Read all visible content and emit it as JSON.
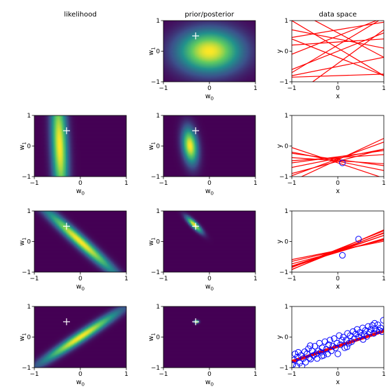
{
  "column_titles": [
    "likelihood",
    "prior/posterior",
    "data space"
  ],
  "colors": {
    "line": "#ff0000",
    "data_point": "#0000ff",
    "background_low": "#440154",
    "true_marker": "#ffffff",
    "colormap": "viridis"
  },
  "chart_data": [
    {
      "type": "heatmap",
      "panel": "prior",
      "title": "prior/posterior",
      "xlabel": "w0",
      "ylabel": "w1",
      "xlim": [
        -1,
        1
      ],
      "ylim": [
        -1,
        1
      ],
      "xticks": [
        -1,
        0,
        1
      ],
      "yticks": [
        -1,
        0,
        1
      ],
      "gaussian": {
        "mean": [
          0.0,
          0.0
        ],
        "std": [
          0.5,
          0.5
        ],
        "corr": 0.0
      },
      "marker": {
        "w0": -0.3,
        "w1": 0.5
      }
    },
    {
      "type": "line",
      "panel": "data space",
      "title": "data space",
      "xlabel": "x",
      "ylabel": "y",
      "xlim": [
        -1,
        1
      ],
      "ylim": [
        -1,
        1
      ],
      "xticks": [
        -1,
        0,
        1
      ],
      "yticks": [
        -1,
        0,
        1
      ],
      "lines": [
        {
          "w0": 0.6,
          "w1": -0.8
        },
        {
          "w0": 0.2,
          "w1": 0.9
        },
        {
          "w0": -0.5,
          "w1": 0.3
        },
        {
          "w0": 0.4,
          "w1": -0.3
        },
        {
          "w0": -0.8,
          "w1": 0.05
        },
        {
          "w0": 0.1,
          "w1": -0.9
        },
        {
          "w0": 0.0,
          "w1": 0.6
        },
        {
          "w0": 0.7,
          "w1": 0.25
        },
        {
          "w0": -0.2,
          "w1": -0.6
        },
        {
          "w0": 0.3,
          "w1": 0.1
        },
        {
          "w0": -0.4,
          "w1": 1.1
        },
        {
          "w0": 0.5,
          "w1": 0.6
        }
      ],
      "points": []
    },
    {
      "type": "heatmap",
      "panel": "likelihood",
      "title": "likelihood",
      "xlabel": "w0",
      "ylabel": "w1",
      "xlim": [
        -1,
        1
      ],
      "ylim": [
        -1,
        1
      ],
      "xticks": [
        -1,
        0,
        1
      ],
      "yticks": [
        -1,
        0,
        1
      ],
      "gaussian": {
        "mean": [
          -0.45,
          0.0
        ],
        "std": [
          0.13,
          1.4
        ],
        "corr": -0.3
      },
      "marker": {
        "w0": -0.3,
        "w1": 0.5
      }
    },
    {
      "type": "heatmap",
      "panel": "prior/posterior",
      "xlabel": "w0",
      "ylabel": "w1",
      "xlim": [
        -1,
        1
      ],
      "ylim": [
        -1,
        1
      ],
      "xticks": [
        -1,
        0,
        1
      ],
      "yticks": [
        -1,
        0,
        1
      ],
      "gaussian": {
        "mean": [
          -0.42,
          0.0
        ],
        "std": [
          0.12,
          0.42
        ],
        "corr": -0.25
      },
      "marker": {
        "w0": -0.3,
        "w1": 0.5
      }
    },
    {
      "type": "line",
      "panel": "data space",
      "xlabel": "x",
      "ylabel": "y",
      "xlim": [
        -1,
        1
      ],
      "ylim": [
        -1,
        1
      ],
      "xticks": [
        -1,
        0,
        1
      ],
      "yticks": [
        -1,
        0,
        1
      ],
      "lines": [
        {
          "w0": -0.4,
          "w1": 0.3
        },
        {
          "w0": -0.45,
          "w1": 0.7
        },
        {
          "w0": -0.5,
          "w1": -0.3
        },
        {
          "w0": -0.38,
          "w1": 0.1
        },
        {
          "w0": -0.55,
          "w1": -0.5
        },
        {
          "w0": -0.42,
          "w1": 0.55
        },
        {
          "w0": -0.48,
          "w1": -0.1
        },
        {
          "w0": -0.35,
          "w1": 0.2
        },
        {
          "w0": -0.5,
          "w1": 0.4
        },
        {
          "w0": -0.44,
          "w1": -0.2
        }
      ],
      "points": [
        {
          "x": 0.1,
          "y": -0.55
        }
      ]
    },
    {
      "type": "heatmap",
      "panel": "likelihood",
      "xlabel": "w0",
      "ylabel": "w1",
      "xlim": [
        -1,
        1
      ],
      "ylim": [
        -1,
        1
      ],
      "xticks": [
        -1,
        0,
        1
      ],
      "yticks": [
        -1,
        0,
        1
      ],
      "gaussian": {
        "mean": [
          0.0,
          0.0
        ],
        "std": [
          0.55,
          0.75
        ],
        "corr": -0.97
      },
      "marker": {
        "w0": -0.3,
        "w1": 0.5
      }
    },
    {
      "type": "heatmap",
      "panel": "prior/posterior",
      "xlabel": "w0",
      "ylabel": "w1",
      "xlim": [
        -1,
        1
      ],
      "ylim": [
        -1,
        1
      ],
      "xticks": [
        -1,
        0,
        1
      ],
      "yticks": [
        -1,
        0,
        1
      ],
      "gaussian": {
        "mean": [
          -0.33,
          0.55
        ],
        "std": [
          0.12,
          0.18
        ],
        "corr": -0.85
      },
      "marker": {
        "w0": -0.3,
        "w1": 0.5
      }
    },
    {
      "type": "line",
      "panel": "data space",
      "xlabel": "x",
      "ylabel": "y",
      "xlim": [
        -1,
        1
      ],
      "ylim": [
        -1,
        1
      ],
      "xticks": [
        -1,
        0,
        1
      ],
      "yticks": [
        -1,
        0,
        1
      ],
      "lines": [
        {
          "w0": -0.3,
          "w1": 0.5
        },
        {
          "w0": -0.28,
          "w1": 0.55
        },
        {
          "w0": -0.33,
          "w1": 0.4
        },
        {
          "w0": -0.25,
          "w1": 0.6
        },
        {
          "w0": -0.35,
          "w1": 0.45
        },
        {
          "w0": -0.3,
          "w1": 0.35
        },
        {
          "w0": -0.27,
          "w1": 0.65
        },
        {
          "w0": -0.32,
          "w1": 0.52
        },
        {
          "w0": -0.29,
          "w1": 0.3
        },
        {
          "w0": -0.31,
          "w1": 0.6
        }
      ],
      "points": [
        {
          "x": 0.1,
          "y": -0.45
        },
        {
          "x": 0.45,
          "y": 0.08
        }
      ]
    },
    {
      "type": "heatmap",
      "panel": "likelihood",
      "xlabel": "w0",
      "ylabel": "w1",
      "xlim": [
        -1,
        1
      ],
      "ylim": [
        -1,
        1
      ],
      "xticks": [
        -1,
        0,
        1
      ],
      "yticks": [
        -1,
        0,
        1
      ],
      "gaussian": {
        "mean": [
          0.0,
          0.0
        ],
        "std": [
          0.6,
          0.6
        ],
        "corr": 0.97
      },
      "marker": {
        "w0": -0.3,
        "w1": 0.5
      }
    },
    {
      "type": "heatmap",
      "panel": "prior/posterior",
      "xlabel": "w0",
      "ylabel": "w1",
      "xlim": [
        -1,
        1
      ],
      "ylim": [
        -1,
        1
      ],
      "xticks": [
        -1,
        0,
        1
      ],
      "yticks": [
        -1,
        0,
        1
      ],
      "gaussian": {
        "mean": [
          -0.28,
          0.5
        ],
        "std": [
          0.035,
          0.035
        ],
        "corr": 0.0
      },
      "marker": {
        "w0": -0.3,
        "w1": 0.5
      }
    },
    {
      "type": "scatter",
      "panel": "data space",
      "xlabel": "x",
      "ylabel": "y",
      "xlim": [
        -1,
        1
      ],
      "ylim": [
        -1,
        1
      ],
      "xticks": [
        -1,
        0,
        1
      ],
      "yticks": [
        -1,
        0,
        1
      ],
      "lines": [
        {
          "w0": -0.3,
          "w1": 0.5
        },
        {
          "w0": -0.29,
          "w1": 0.51
        },
        {
          "w0": -0.31,
          "w1": 0.49
        },
        {
          "w0": -0.28,
          "w1": 0.5
        },
        {
          "w0": -0.32,
          "w1": 0.5
        },
        {
          "w0": -0.3,
          "w1": 0.52
        },
        {
          "w0": -0.3,
          "w1": 0.48
        },
        {
          "w0": -0.29,
          "w1": 0.49
        },
        {
          "w0": -0.31,
          "w1": 0.51
        },
        {
          "w0": -0.3,
          "w1": 0.5
        }
      ],
      "points": [
        {
          "x": -0.98,
          "y": -0.9
        },
        {
          "x": -0.95,
          "y": -0.75
        },
        {
          "x": -0.93,
          "y": -0.55
        },
        {
          "x": -0.9,
          "y": -0.95
        },
        {
          "x": -0.88,
          "y": -0.65
        },
        {
          "x": -0.86,
          "y": -0.5
        },
        {
          "x": -0.83,
          "y": -0.85
        },
        {
          "x": -0.8,
          "y": -0.6
        },
        {
          "x": -0.78,
          "y": -0.95
        },
        {
          "x": -0.75,
          "y": -0.7
        },
        {
          "x": -0.72,
          "y": -0.48
        },
        {
          "x": -0.7,
          "y": -0.82
        },
        {
          "x": -0.67,
          "y": -0.55
        },
        {
          "x": -0.64,
          "y": -0.38
        },
        {
          "x": -0.62,
          "y": -0.68
        },
        {
          "x": -0.59,
          "y": -0.72
        },
        {
          "x": -0.56,
          "y": -0.45
        },
        {
          "x": -0.53,
          "y": -0.6
        },
        {
          "x": -0.5,
          "y": -0.3
        },
        {
          "x": -0.47,
          "y": -0.55
        },
        {
          "x": -0.45,
          "y": -0.7
        },
        {
          "x": -0.42,
          "y": -0.45
        },
        {
          "x": -0.4,
          "y": -0.2
        },
        {
          "x": -0.37,
          "y": -0.5
        },
        {
          "x": -0.34,
          "y": -0.35
        },
        {
          "x": -0.31,
          "y": -0.6
        },
        {
          "x": -0.28,
          "y": -0.15
        },
        {
          "x": -0.25,
          "y": -0.4
        },
        {
          "x": -0.22,
          "y": -0.55
        },
        {
          "x": -0.2,
          "y": -0.25
        },
        {
          "x": -0.17,
          "y": -0.1
        },
        {
          "x": -0.14,
          "y": -0.45
        },
        {
          "x": -0.11,
          "y": -0.3
        },
        {
          "x": -0.08,
          "y": -0.05
        },
        {
          "x": -0.05,
          "y": -0.35
        },
        {
          "x": -0.02,
          "y": -0.2
        },
        {
          "x": 0.0,
          "y": -0.55
        },
        {
          "x": 0.03,
          "y": 0.05
        },
        {
          "x": 0.06,
          "y": -0.25
        },
        {
          "x": 0.09,
          "y": -0.1
        },
        {
          "x": 0.12,
          "y": 0.0
        },
        {
          "x": 0.15,
          "y": -0.35
        },
        {
          "x": 0.18,
          "y": -0.1
        },
        {
          "x": 0.21,
          "y": 0.12
        },
        {
          "x": 0.24,
          "y": -0.2
        },
        {
          "x": 0.27,
          "y": 0.05
        },
        {
          "x": 0.3,
          "y": -0.15
        },
        {
          "x": 0.33,
          "y": 0.18
        },
        {
          "x": 0.36,
          "y": -0.05
        },
        {
          "x": 0.39,
          "y": 0.1
        },
        {
          "x": 0.42,
          "y": 0.25
        },
        {
          "x": 0.45,
          "y": 0.0
        },
        {
          "x": 0.48,
          "y": 0.15
        },
        {
          "x": 0.51,
          "y": 0.05
        },
        {
          "x": 0.54,
          "y": 0.3
        },
        {
          "x": 0.57,
          "y": 0.1
        },
        {
          "x": 0.6,
          "y": 0.22
        },
        {
          "x": 0.63,
          "y": 0.02
        },
        {
          "x": 0.66,
          "y": 0.35
        },
        {
          "x": 0.69,
          "y": 0.15
        },
        {
          "x": 0.72,
          "y": 0.25
        },
        {
          "x": 0.75,
          "y": 0.38
        },
        {
          "x": 0.78,
          "y": 0.12
        },
        {
          "x": 0.81,
          "y": 0.28
        },
        {
          "x": 0.84,
          "y": 0.2
        },
        {
          "x": 0.87,
          "y": 0.4
        },
        {
          "x": 0.9,
          "y": 0.22
        },
        {
          "x": 0.93,
          "y": 0.3
        },
        {
          "x": 0.96,
          "y": 0.18
        },
        {
          "x": 0.99,
          "y": 0.55
        },
        {
          "x": -0.35,
          "y": -0.62
        },
        {
          "x": 0.2,
          "y": -0.32
        },
        {
          "x": -0.6,
          "y": -0.28
        },
        {
          "x": 0.55,
          "y": -0.08
        },
        {
          "x": 0.8,
          "y": 0.45
        }
      ]
    }
  ]
}
